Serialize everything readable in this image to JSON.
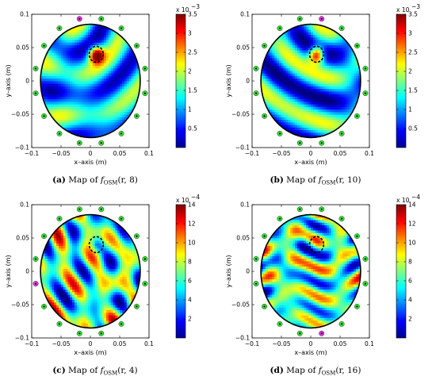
{
  "chart_data": [
    {
      "type": "heatmap",
      "caption_tag": "(a)",
      "caption_text": "Map of",
      "caption_func": "f",
      "caption_sub": "OSM",
      "caption_args": "(r, 8)",
      "xlabel": "x–axis (m)",
      "ylabel": "y–axis (m)",
      "xlim": [
        -0.1,
        0.1
      ],
      "ylim": [
        -0.1,
        0.1
      ],
      "xticks": [
        "−0.1",
        "−0.05",
        "0",
        "0.05",
        "0.1"
      ],
      "yticks": [
        "0.1",
        "0.05",
        "0",
        "−0.05",
        "−0.1"
      ],
      "colorbar": {
        "min": 0,
        "max": 0.0035,
        "exponent_label": "x 10",
        "exponent_power": "−3",
        "ticks": [
          "3.5",
          "3",
          "2.5",
          "2",
          "1.5",
          "1",
          "0.5"
        ]
      },
      "region_radius": 0.085,
      "target": {
        "x": 0.01,
        "y": 0.04,
        "radius": 0.012
      },
      "antennas": {
        "count": 16,
        "radius": 0.095,
        "active_transmitter": {
          "x": -0.03,
          "y": 0.095
        }
      },
      "colors": {
        "antenna": "#33e633",
        "transmitter": "#e633e6",
        "boundary": "#000000"
      }
    },
    {
      "type": "heatmap",
      "caption_tag": "(b)",
      "caption_text": "Map of",
      "caption_func": "f",
      "caption_sub": "OSM",
      "caption_args": "(r, 10)",
      "xlabel": "x–axis (m)",
      "ylabel": "y–axis (m)",
      "xlim": [
        -0.1,
        0.1
      ],
      "ylim": [
        -0.1,
        0.1
      ],
      "xticks": [
        "−0.1",
        "−0.05",
        "0",
        "0.05",
        "0.1"
      ],
      "yticks": [
        "0.1",
        "0.05",
        "0",
        "−0.05",
        "−0.1"
      ],
      "colorbar": {
        "min": 0,
        "max": 0.0035,
        "exponent_label": "x 10",
        "exponent_power": "−3",
        "ticks": [
          "3.5",
          "3",
          "2.5",
          "2",
          "1.5",
          "1",
          "0.5"
        ]
      },
      "region_radius": 0.085,
      "target": {
        "x": 0.01,
        "y": 0.04,
        "radius": 0.012
      },
      "antennas": {
        "count": 16,
        "radius": 0.095,
        "active_transmitter": {
          "x": 0.03,
          "y": 0.095
        }
      },
      "colors": {
        "antenna": "#33e633",
        "transmitter": "#e633e6",
        "boundary": "#000000"
      }
    },
    {
      "type": "heatmap",
      "caption_tag": "(c)",
      "caption_text": "Map of",
      "caption_func": "f",
      "caption_sub": "OSM",
      "caption_args": "(r, 4)",
      "xlabel": "x–axis (m)",
      "ylabel": "y–axis (m)",
      "xlim": [
        -0.1,
        0.1
      ],
      "ylim": [
        -0.1,
        0.1
      ],
      "xticks": [
        "−0.1",
        "−0.05",
        "0",
        "0.05",
        "0.1"
      ],
      "yticks": [
        "0.1",
        "0.05",
        "0",
        "−0.05",
        "−0.1"
      ],
      "colorbar": {
        "min": 0,
        "max": 0.0014,
        "exponent_label": "x 10",
        "exponent_power": "−4",
        "ticks": [
          "14",
          "12",
          "10",
          "8",
          "6",
          "4",
          "2"
        ]
      },
      "region_radius": 0.085,
      "target": {
        "x": 0.01,
        "y": 0.04,
        "radius": 0.012
      },
      "antennas": {
        "count": 16,
        "radius": 0.095,
        "active_transmitter": {
          "x": -0.09,
          "y": -0.03
        }
      },
      "colors": {
        "antenna": "#33e633",
        "transmitter": "#e633e6",
        "boundary": "#000000"
      }
    },
    {
      "type": "heatmap",
      "caption_tag": "(d)",
      "caption_text": "Map of",
      "caption_func": "f",
      "caption_sub": "OSM",
      "caption_args": "(r, 16)",
      "xlabel": "x–axis (m)",
      "ylabel": "y–axis (m)",
      "xlim": [
        -0.1,
        0.1
      ],
      "ylim": [
        -0.1,
        0.1
      ],
      "xticks": [
        "−0.1",
        "−0.05",
        "0",
        "0.05",
        "0.1"
      ],
      "yticks": [
        "0.1",
        "0.05",
        "0",
        "−0.05",
        "−0.1"
      ],
      "colorbar": {
        "min": 0,
        "max": 0.0014,
        "exponent_label": "x 10",
        "exponent_power": "−4",
        "ticks": [
          "14",
          "12",
          "10",
          "8",
          "6",
          "4",
          "2"
        ]
      },
      "region_radius": 0.085,
      "target": {
        "x": 0.01,
        "y": 0.04,
        "radius": 0.012
      },
      "antennas": {
        "count": 16,
        "radius": 0.095,
        "active_transmitter": {
          "x": 0.03,
          "y": -0.09
        }
      },
      "colors": {
        "antenna": "#33e633",
        "transmitter": "#e633e6",
        "boundary": "#000000"
      }
    }
  ]
}
